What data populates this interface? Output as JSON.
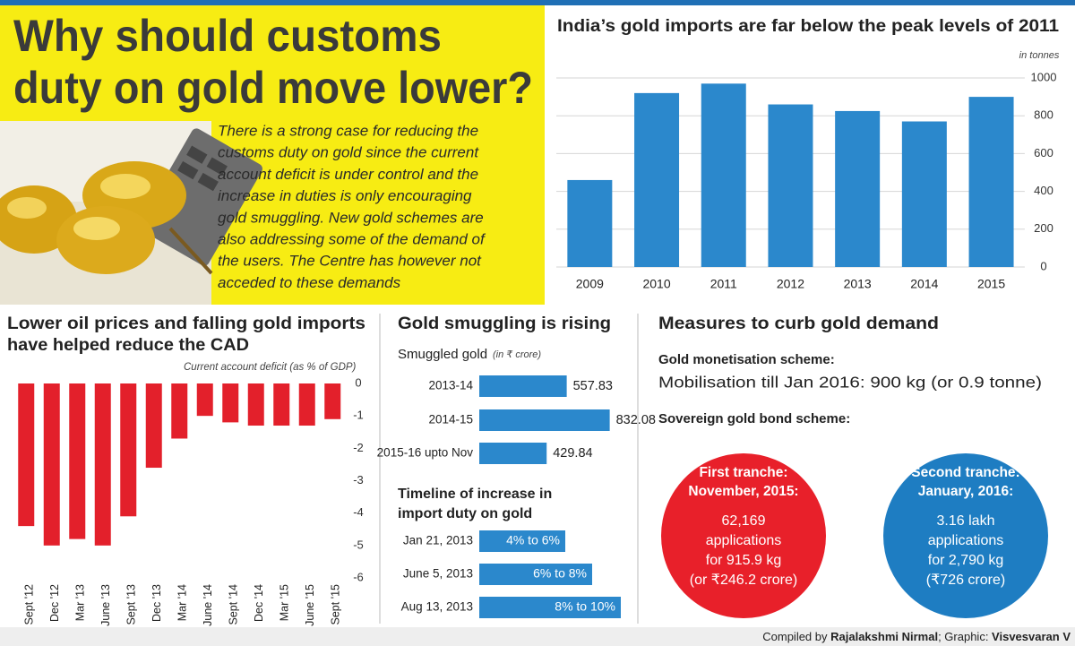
{
  "header": {
    "title": [
      "Why should customs",
      "duty on gold move lower?"
    ],
    "description": [
      "There is a strong case for reducing the",
      "customs duty on gold since the current",
      "account deficit is under control and the",
      "increase in duties is only encouraging",
      "gold smuggling. New gold schemes are",
      "also addressing some of the demand of",
      "the users. The Centre has however not",
      "acceded to these demands"
    ]
  },
  "chart_data": [
    {
      "type": "bar",
      "title": "India’s gold imports are far below the peak levels of 2011",
      "unit": "in tonnes",
      "categories": [
        "2009",
        "2010",
        "2011",
        "2012",
        "2013",
        "2014",
        "2015"
      ],
      "values": [
        460,
        920,
        970,
        860,
        825,
        770,
        900
      ],
      "color": "#2b88cc",
      "ylim": [
        0,
        1000
      ],
      "yticks": [
        0,
        200,
        400,
        600,
        800,
        1000
      ],
      "grid": true
    },
    {
      "type": "bar",
      "title": [
        "Lower oil prices and falling gold imports",
        "have helped reduce the CAD"
      ],
      "subtitle": "Current account deficit (as % of GDP)",
      "categories": [
        "Sept '12",
        "Dec '12",
        "Mar '13",
        "June '13",
        "Sept '13",
        "Dec '13",
        "Mar '14",
        "June '14",
        "Sept '14",
        "Dec '14",
        "Mar '15",
        "June '15",
        "Sept '15"
      ],
      "values": [
        -4.4,
        -5.0,
        -4.8,
        -5.0,
        -4.1,
        -2.6,
        -1.7,
        -1.0,
        -1.2,
        -1.3,
        -1.3,
        -1.3,
        -1.1
      ],
      "color": "#e3202b",
      "ylim": [
        -6,
        0
      ],
      "yticks": [
        0,
        -1,
        -2,
        -3,
        -4,
        -5,
        -6
      ],
      "grid": false
    },
    {
      "type": "barh",
      "title": "Gold smuggling is rising",
      "subtitle": "Smuggled gold",
      "unit": "(in ₹ crore)",
      "categories": [
        "2013-14",
        "2014-15",
        "2015-16 upto Nov"
      ],
      "values": [
        557.83,
        832.08,
        429.84
      ],
      "color": "#2b88cc"
    }
  ],
  "duty_timeline": {
    "title": [
      "Timeline of increase in",
      "import duty on gold"
    ],
    "rows": [
      {
        "date": "Jan 21, 2013",
        "change": "4% to 6%"
      },
      {
        "date": "June 5, 2013",
        "change": "6% to 8%"
      },
      {
        "date": "Aug 13, 2013",
        "change": "8% to 10%"
      }
    ]
  },
  "measures": {
    "title": "Measures to curb gold demand",
    "monetisation_heading": "Gold monetisation scheme:",
    "monetisation_text": "Mobilisation till Jan 2016: 900 kg (or 0.9 tonne)",
    "bond_heading": "Sovereign gold bond scheme:",
    "tranches": [
      {
        "heading": [
          "First tranche:",
          "November, 2015:"
        ],
        "lines": [
          "62,169",
          "applications",
          "for 915.9 kg",
          "(or ₹246.2 crore)"
        ],
        "color": "#e8202a"
      },
      {
        "heading": [
          "Second tranche:",
          "January, 2016:"
        ],
        "lines": [
          "3.16 lakh",
          "applications",
          "for 2,790 kg",
          "(₹726 crore)"
        ],
        "color": "#1e7dc2"
      }
    ]
  },
  "credit": [
    "Compiled by ",
    "Rajalakshmi Nirmal",
    "; Graphic: ",
    "Visvesvaran V"
  ]
}
